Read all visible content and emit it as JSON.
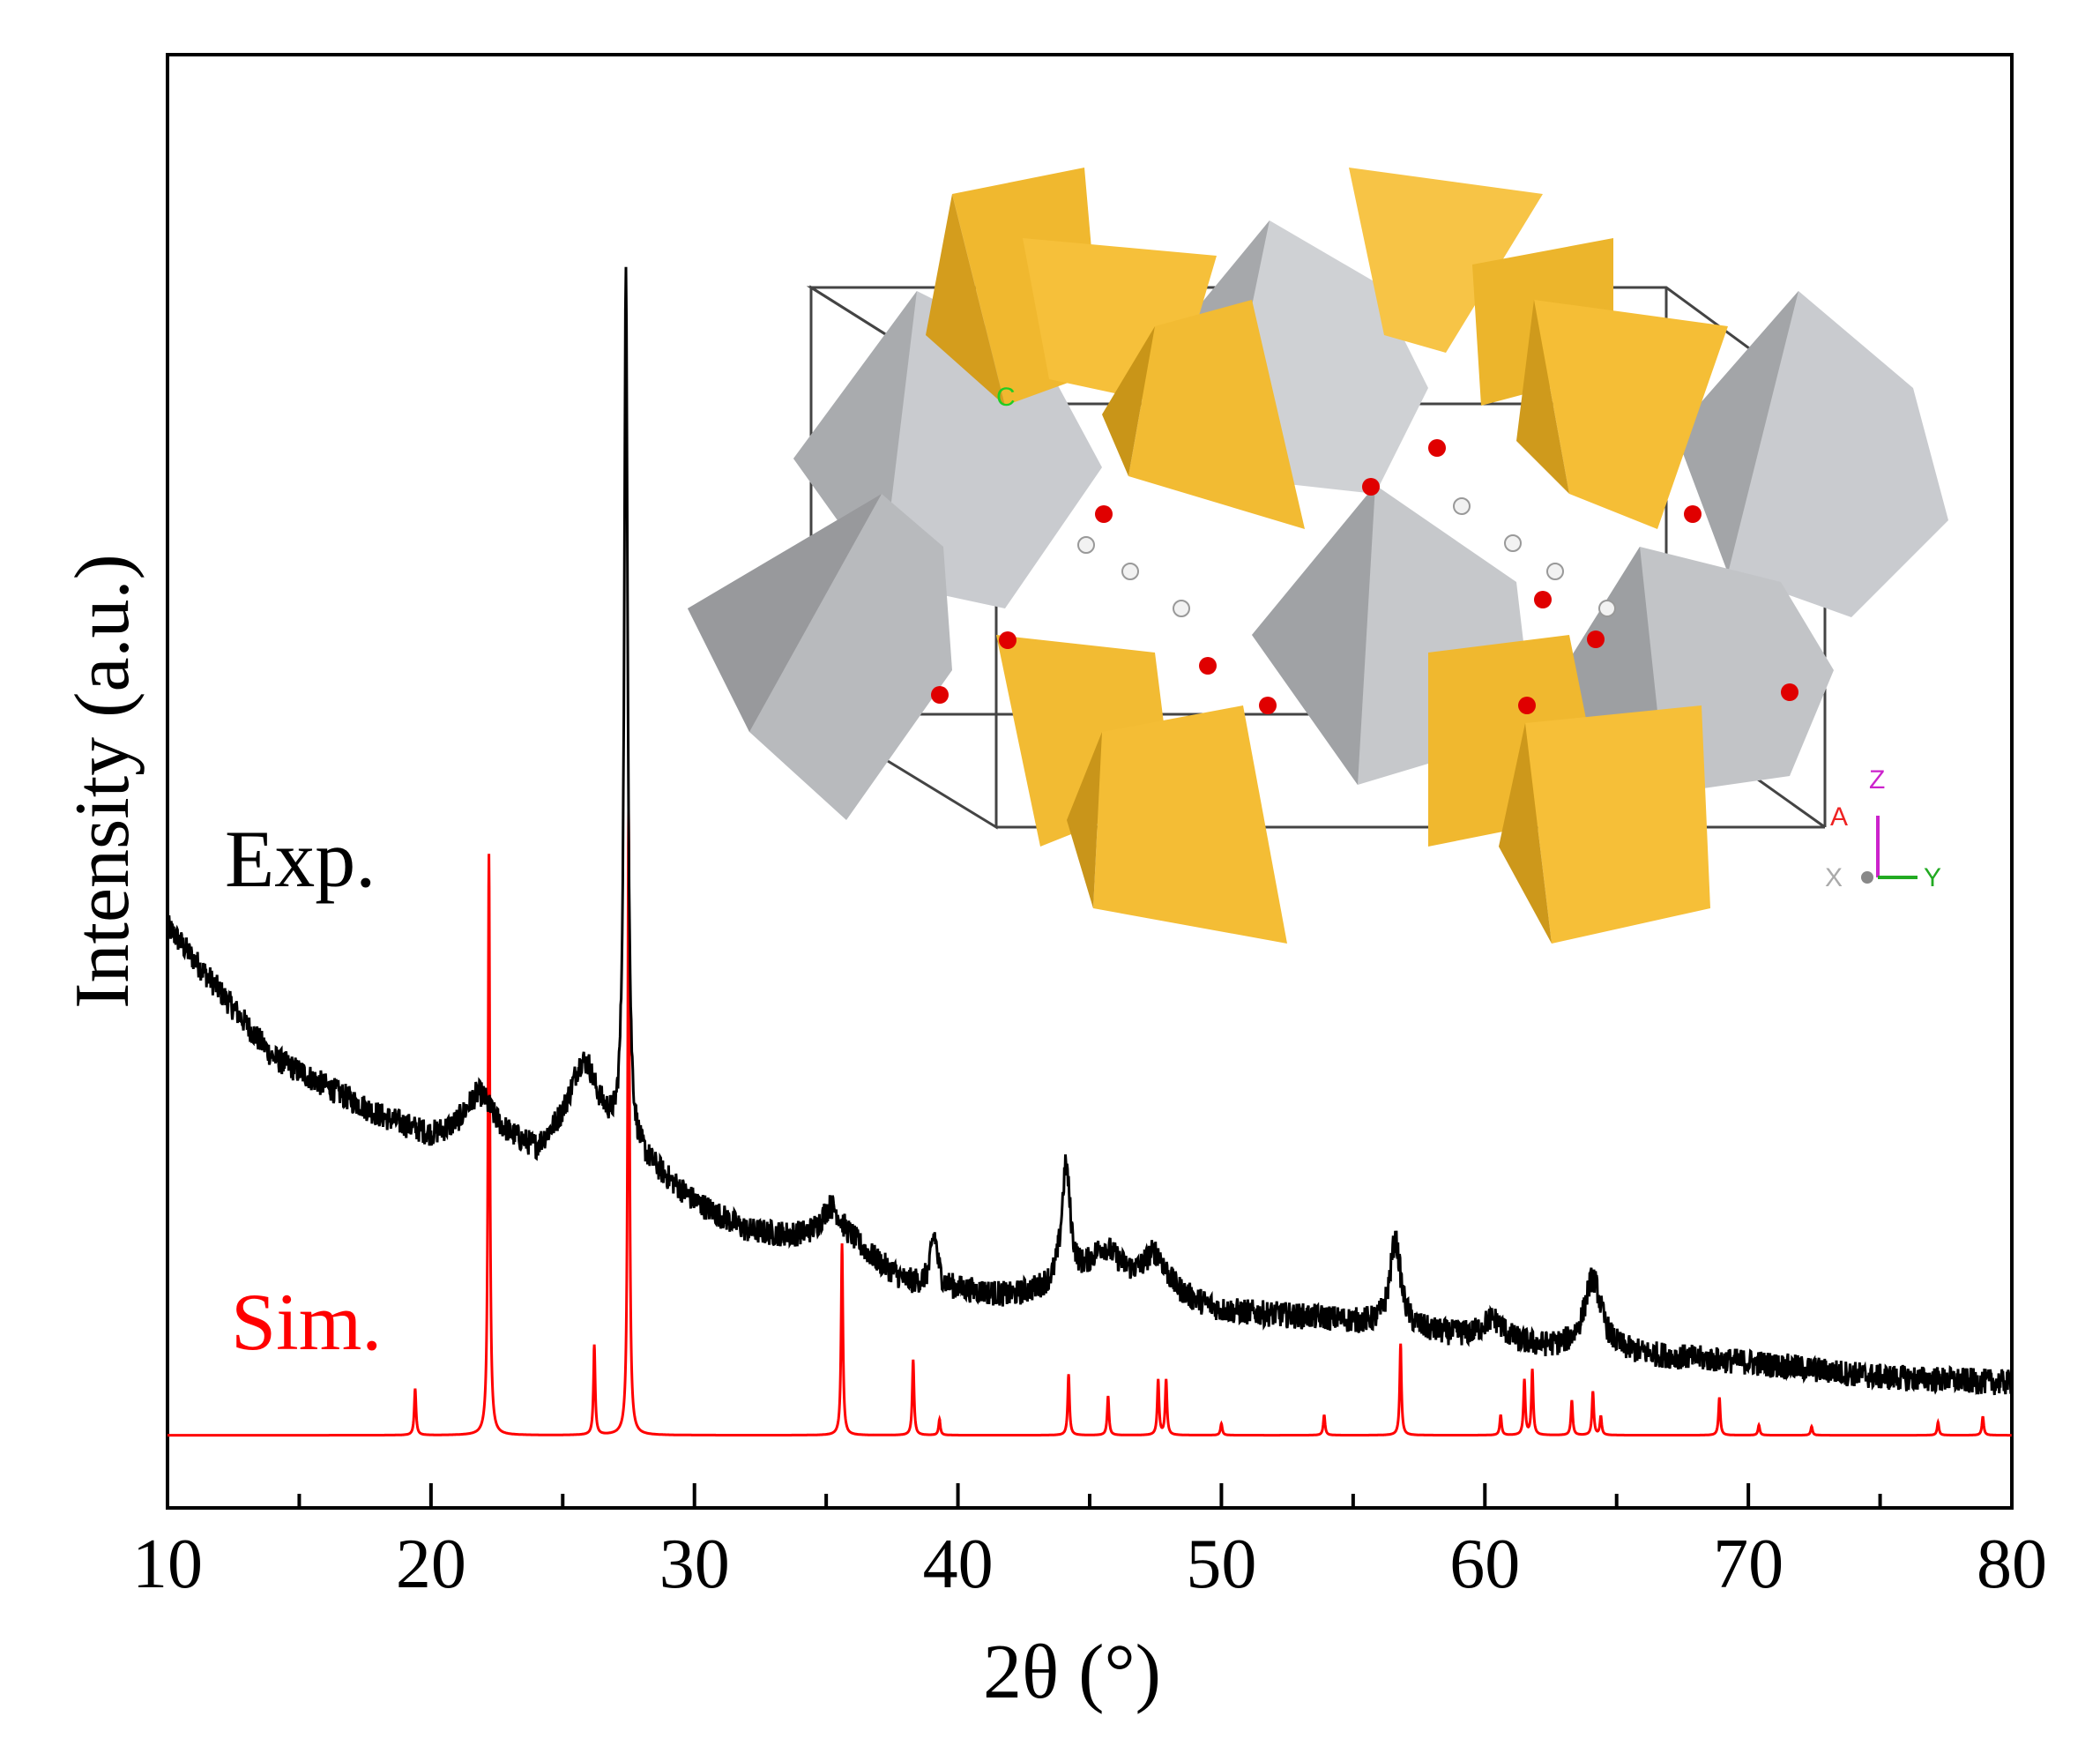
{
  "chart_data": {
    "type": "line",
    "title": "",
    "xlabel": "2θ (°)",
    "ylabel": "Intensity (a.u.)",
    "xlim": [
      10,
      80
    ],
    "ylim": [
      0,
      100
    ],
    "x_ticks": [
      10,
      20,
      30,
      40,
      50,
      60,
      70,
      80
    ],
    "grid": false,
    "legend": "inline labels at left",
    "series": [
      {
        "name": "Exp.",
        "label": "Exp.",
        "color": "#000000",
        "baseline": [
          [
            10,
            40
          ],
          [
            14,
            31
          ],
          [
            18,
            27
          ],
          [
            20,
            25.5
          ],
          [
            22,
            26
          ],
          [
            24,
            24.5
          ],
          [
            26,
            28
          ],
          [
            27,
            25.5
          ],
          [
            28,
            24
          ],
          [
            30,
            21
          ],
          [
            32,
            19
          ],
          [
            34,
            18.5
          ],
          [
            36,
            18
          ],
          [
            38,
            15.5
          ],
          [
            42,
            14.5
          ],
          [
            46,
            15.8
          ],
          [
            50,
            13.5
          ],
          [
            54,
            13
          ],
          [
            58,
            12
          ],
          [
            62,
            11
          ],
          [
            66,
            10.5
          ],
          [
            70,
            10
          ],
          [
            75,
            9
          ],
          [
            80,
            8.6
          ]
        ],
        "peaks": [
          {
            "x": 21.8,
            "height": 2.5,
            "width": 0.6
          },
          {
            "x": 25.7,
            "height": 3,
            "width": 0.5
          },
          {
            "x": 27.4,
            "height": 60,
            "width": 0.08
          },
          {
            "x": 35.2,
            "height": 2.5,
            "width": 0.5
          },
          {
            "x": 39.1,
            "height": 3.5,
            "width": 0.15
          },
          {
            "x": 44.1,
            "height": 8,
            "width": 0.2
          },
          {
            "x": 45.5,
            "height": 2,
            "width": 0.6
          },
          {
            "x": 47.5,
            "height": 2.5,
            "width": 0.5
          },
          {
            "x": 56.6,
            "height": 6,
            "width": 0.25
          },
          {
            "x": 60.3,
            "height": 1.5,
            "width": 0.5
          },
          {
            "x": 64.1,
            "height": 5,
            "width": 0.4
          }
        ],
        "noise": 0.9
      },
      {
        "name": "Sim.",
        "label": "Sim.",
        "color": "#ff0000",
        "baseline_value": 5,
        "peaks": [
          {
            "x": 19.4,
            "height": 3.2
          },
          {
            "x": 22.2,
            "height": 40
          },
          {
            "x": 26.2,
            "height": 6.2
          },
          {
            "x": 27.5,
            "height": 43
          },
          {
            "x": 35.6,
            "height": 13.2
          },
          {
            "x": 38.3,
            "height": 5.2
          },
          {
            "x": 39.3,
            "height": 1.1
          },
          {
            "x": 44.2,
            "height": 4.2
          },
          {
            "x": 45.7,
            "height": 2.7
          },
          {
            "x": 47.6,
            "height": 3.8
          },
          {
            "x": 47.9,
            "height": 3.8
          },
          {
            "x": 50.0,
            "height": 0.8
          },
          {
            "x": 53.9,
            "height": 1.4
          },
          {
            "x": 56.8,
            "height": 6.3
          },
          {
            "x": 60.6,
            "height": 1.4
          },
          {
            "x": 61.5,
            "height": 3.8
          },
          {
            "x": 61.8,
            "height": 4.5
          },
          {
            "x": 63.3,
            "height": 2.4
          },
          {
            "x": 64.1,
            "height": 3.0
          },
          {
            "x": 64.4,
            "height": 1.3
          },
          {
            "x": 68.9,
            "height": 2.6
          },
          {
            "x": 70.4,
            "height": 0.7
          },
          {
            "x": 72.4,
            "height": 0.6
          },
          {
            "x": 77.2,
            "height": 0.9
          },
          {
            "x": 78.9,
            "height": 1.3
          }
        ]
      }
    ],
    "inset": {
      "description_colors": {
        "tetrahedra": "#f5b82a",
        "octahedra": "#c8cacd",
        "oxygen": "#e00000",
        "hydrogen": "#f0f0f0"
      },
      "axis_labels": {
        "c": "C",
        "a": "A",
        "z": "Z",
        "y": "Y",
        "x": "X"
      }
    }
  }
}
